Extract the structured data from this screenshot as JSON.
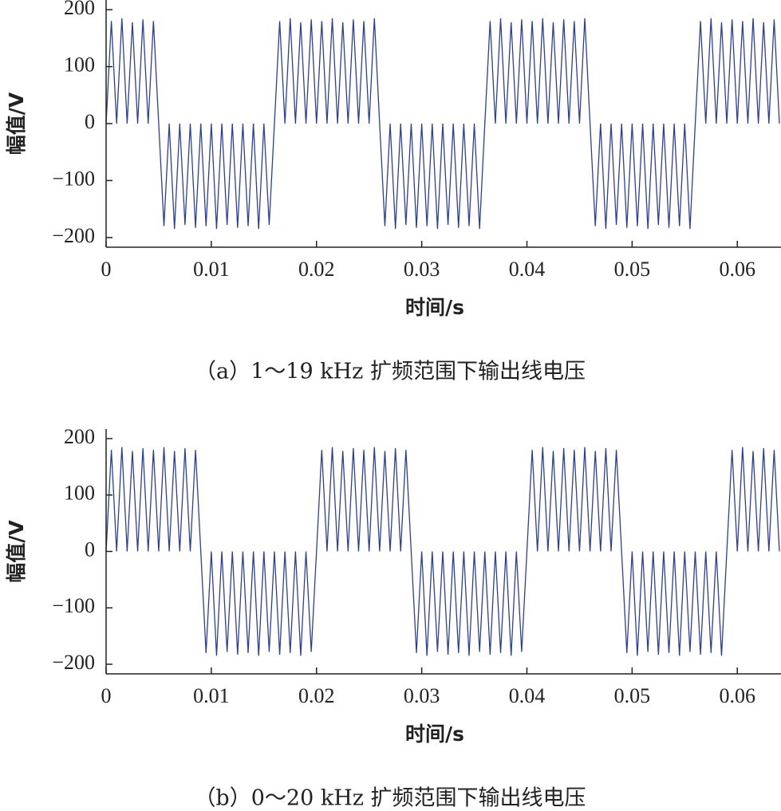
{
  "chart_data": [
    {
      "type": "line",
      "caption": "（a）1～19 kHz 扩频范围下输出线电压",
      "xlabel": "时间/s",
      "ylabel": "幅值/V",
      "xlim": [
        0,
        0.064
      ],
      "ylim": [
        -217,
        217
      ],
      "xticks": [
        0,
        0.01,
        0.02,
        0.03,
        0.04,
        0.05,
        0.06
      ],
      "yticks": [
        {
          "value": -200,
          "label": "−200"
        },
        {
          "value": -100,
          "label": "−100"
        },
        0,
        100,
        200
      ],
      "color": "#2b3f99",
      "x": [
        0,
        0.0005,
        0.001,
        0.0015,
        0.002,
        0.0025,
        0.003,
        0.0035,
        0.004,
        0.0045,
        0.005,
        0.0055,
        0.006,
        0.0065,
        0.007,
        0.0075,
        0.008,
        0.0085,
        0.009,
        0.0095,
        0.01,
        0.0105,
        0.011,
        0.0115,
        0.012,
        0.0125,
        0.013,
        0.0135,
        0.014,
        0.0145,
        0.015,
        0.0155,
        0.016,
        0.0165,
        0.017,
        0.0175,
        0.018,
        0.0185,
        0.019,
        0.0195,
        0.02,
        0.0205,
        0.021,
        0.0215,
        0.022,
        0.0225,
        0.023,
        0.0235,
        0.024,
        0.0245,
        0.025,
        0.0255,
        0.026,
        0.0265,
        0.027,
        0.0275,
        0.028,
        0.0285,
        0.029,
        0.0295,
        0.03,
        0.0305,
        0.031,
        0.0315,
        0.032,
        0.0325,
        0.033,
        0.0335,
        0.034,
        0.0345,
        0.035,
        0.0355,
        0.036,
        0.0365,
        0.037,
        0.0375,
        0.038,
        0.0385,
        0.039,
        0.0395,
        0.04,
        0.0405,
        0.041,
        0.0415,
        0.042,
        0.0425,
        0.043,
        0.0435,
        0.044,
        0.0445,
        0.045,
        0.0455,
        0.046,
        0.0465,
        0.047,
        0.0475,
        0.048,
        0.0485,
        0.049,
        0.0495,
        0.05,
        0.0505,
        0.051,
        0.0515,
        0.052,
        0.0525,
        0.053,
        0.0535,
        0.054,
        0.0545,
        0.055,
        0.0555,
        0.056,
        0.0565,
        0.057,
        0.0575,
        0.058,
        0.0585,
        0.059,
        0.0595,
        0.06,
        0.0605,
        0.061,
        0.0615,
        0.062,
        0.0625,
        0.063,
        0.0635,
        0.064
      ],
      "values": [
        0,
        180,
        0,
        185,
        0,
        178,
        0,
        183,
        0,
        180,
        0,
        -180,
        0,
        -185,
        0,
        -178,
        0,
        -183,
        0,
        -180,
        0,
        -185,
        0,
        -178,
        0,
        -183,
        0,
        -180,
        0,
        -185,
        0,
        -178,
        0,
        180,
        0,
        185,
        0,
        178,
        0,
        183,
        0,
        180,
        0,
        185,
        0,
        178,
        0,
        183,
        0,
        180,
        0,
        185,
        0,
        -180,
        0,
        -185,
        0,
        -178,
        0,
        -183,
        0,
        -180,
        0,
        -185,
        0,
        -178,
        0,
        -183,
        0,
        -180,
        0,
        -185,
        0,
        180,
        0,
        185,
        0,
        178,
        0,
        183,
        0,
        180,
        0,
        185,
        0,
        178,
        0,
        183,
        0,
        180,
        0,
        185,
        0,
        -180,
        0,
        -185,
        0,
        -178,
        0,
        -183,
        0,
        -180,
        0,
        -185,
        0,
        -178,
        0,
        -183,
        0,
        -180,
        0,
        -185,
        0,
        180,
        0,
        185,
        0,
        178,
        0,
        183,
        0,
        180,
        0,
        185,
        0,
        178,
        0,
        183,
        0
      ]
    },
    {
      "type": "line",
      "caption": "（b）0～20 kHz 扩频范围下输出线电压",
      "xlabel": "时间/s",
      "ylabel": "幅值/V",
      "xlim": [
        0,
        0.064
      ],
      "ylim": [
        -217,
        217
      ],
      "xticks": [
        0,
        0.01,
        0.02,
        0.03,
        0.04,
        0.05,
        0.06
      ],
      "yticks": [
        {
          "value": -200,
          "label": "−200"
        },
        {
          "value": -100,
          "label": "−100"
        },
        0,
        100,
        200
      ],
      "color": "#2b3f99",
      "x": [
        0,
        0.0005,
        0.001,
        0.0015,
        0.002,
        0.0025,
        0.003,
        0.0035,
        0.004,
        0.0045,
        0.005,
        0.0055,
        0.006,
        0.0065,
        0.007,
        0.0075,
        0.008,
        0.0085,
        0.009,
        0.0095,
        0.01,
        0.0105,
        0.011,
        0.0115,
        0.012,
        0.0125,
        0.013,
        0.0135,
        0.014,
        0.0145,
        0.015,
        0.0155,
        0.016,
        0.0165,
        0.017,
        0.0175,
        0.018,
        0.0185,
        0.019,
        0.0195,
        0.02,
        0.0205,
        0.021,
        0.0215,
        0.022,
        0.0225,
        0.023,
        0.0235,
        0.024,
        0.0245,
        0.025,
        0.0255,
        0.026,
        0.0265,
        0.027,
        0.0275,
        0.028,
        0.0285,
        0.029,
        0.0295,
        0.03,
        0.0305,
        0.031,
        0.0315,
        0.032,
        0.0325,
        0.033,
        0.0335,
        0.034,
        0.0345,
        0.035,
        0.0355,
        0.036,
        0.0365,
        0.037,
        0.0375,
        0.038,
        0.0385,
        0.039,
        0.0395,
        0.04,
        0.0405,
        0.041,
        0.0415,
        0.042,
        0.0425,
        0.043,
        0.0435,
        0.044,
        0.0445,
        0.045,
        0.0455,
        0.046,
        0.0465,
        0.047,
        0.0475,
        0.048,
        0.0485,
        0.049,
        0.0495,
        0.05,
        0.0505,
        0.051,
        0.0515,
        0.052,
        0.0525,
        0.053,
        0.0535,
        0.054,
        0.0545,
        0.055,
        0.0555,
        0.056,
        0.0565,
        0.057,
        0.0575,
        0.058,
        0.0585,
        0.059,
        0.0595,
        0.06,
        0.0605,
        0.061,
        0.0615,
        0.062,
        0.0625,
        0.063,
        0.0635,
        0.064
      ],
      "values": [
        0,
        180,
        0,
        185,
        0,
        178,
        0,
        183,
        0,
        180,
        0,
        185,
        0,
        178,
        0,
        183,
        0,
        180,
        0,
        -180,
        0,
        -185,
        0,
        -178,
        0,
        -183,
        0,
        -180,
        0,
        -185,
        0,
        -178,
        0,
        -183,
        0,
        -180,
        0,
        -185,
        0,
        -178,
        0,
        180,
        0,
        185,
        0,
        178,
        0,
        183,
        0,
        180,
        0,
        185,
        0,
        178,
        0,
        183,
        0,
        180,
        0,
        -180,
        0,
        -185,
        0,
        -178,
        0,
        -183,
        0,
        -180,
        0,
        -185,
        0,
        -178,
        0,
        -183,
        0,
        -180,
        0,
        -185,
        0,
        -178,
        0,
        180,
        0,
        185,
        0,
        178,
        0,
        183,
        0,
        180,
        0,
        185,
        0,
        178,
        0,
        183,
        0,
        180,
        0,
        -180,
        0,
        -185,
        0,
        -178,
        0,
        -183,
        0,
        -180,
        0,
        -185,
        0,
        -178,
        0,
        -183,
        0,
        -180,
        0,
        -185,
        0,
        180,
        0,
        185,
        0,
        178,
        0,
        183,
        0,
        180,
        0
      ]
    }
  ]
}
